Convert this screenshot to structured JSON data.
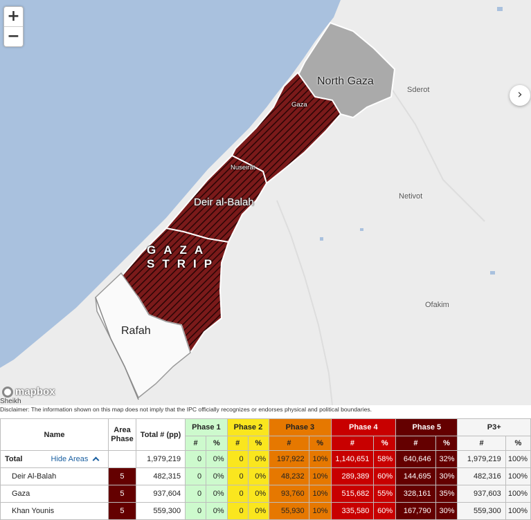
{
  "map": {
    "zoom_in_label": "+",
    "zoom_out_label": "−",
    "next_label": "›",
    "attribution": "mapbox",
    "labels": {
      "north_gaza": "North Gaza",
      "gaza": "Gaza",
      "nuseirat": "Nuseirat",
      "deir_al_balah": "Deir al-Balah",
      "gaza_strip_line1": "GAZA",
      "gaza_strip_line2": "STRIP",
      "rafah": "Rafah",
      "sderot": "Sderot",
      "netivot": "Netivot",
      "ofakim": "Ofakim",
      "sheikh": "Sheikh"
    },
    "colors": {
      "sea": "#a9c1de",
      "land": "#ececec",
      "phase5": "#7a1a1a",
      "no_data": "#aaaaaa",
      "rafah_area": "#fafafa"
    }
  },
  "disclaimer": "Disclaimer: The information shown on this map does not imply that the IPC officially recognizes or endorses physical and political boundaries.",
  "table": {
    "headers": {
      "name": "Name",
      "area_phase": "Area Phase",
      "total": "Total # (pp)",
      "phase1": "Phase 1",
      "phase2": "Phase 2",
      "phase3": "Phase 3",
      "phase4": "Phase 4",
      "phase5": "Phase 5",
      "p3plus": "P3+",
      "count": "#",
      "percent": "%"
    },
    "total_row": {
      "name": "Total",
      "hide_areas": "Hide Areas",
      "area_phase": "",
      "total": "1,979,219",
      "p1n": "0",
      "p1p": "0%",
      "p2n": "0",
      "p2p": "0%",
      "p3n": "197,922",
      "p3p": "10%",
      "p4n": "1,140,651",
      "p4p": "58%",
      "p5n": "640,646",
      "p5p": "32%",
      "p3pn": "1,979,219",
      "p3pp": "100%"
    },
    "rows": [
      {
        "name": "Deir Al-Balah",
        "area_phase": "5",
        "total": "482,315",
        "p1n": "0",
        "p1p": "0%",
        "p2n": "0",
        "p2p": "0%",
        "p3n": "48,232",
        "p3p": "10%",
        "p4n": "289,389",
        "p4p": "60%",
        "p5n": "144,695",
        "p5p": "30%",
        "p3pn": "482,316",
        "p3pp": "100%"
      },
      {
        "name": "Gaza",
        "area_phase": "5",
        "total": "937,604",
        "p1n": "0",
        "p1p": "0%",
        "p2n": "0",
        "p2p": "0%",
        "p3n": "93,760",
        "p3p": "10%",
        "p4n": "515,682",
        "p4p": "55%",
        "p5n": "328,161",
        "p5p": "35%",
        "p3pn": "937,603",
        "p3pp": "100%"
      },
      {
        "name": "Khan Younis",
        "area_phase": "5",
        "total": "559,300",
        "p1n": "0",
        "p1p": "0%",
        "p2n": "0",
        "p2p": "0%",
        "p3n": "55,930",
        "p3p": "10%",
        "p4n": "335,580",
        "p4p": "60%",
        "p5n": "167,790",
        "p5p": "30%",
        "p3pn": "559,300",
        "p3pp": "100%"
      }
    ]
  }
}
